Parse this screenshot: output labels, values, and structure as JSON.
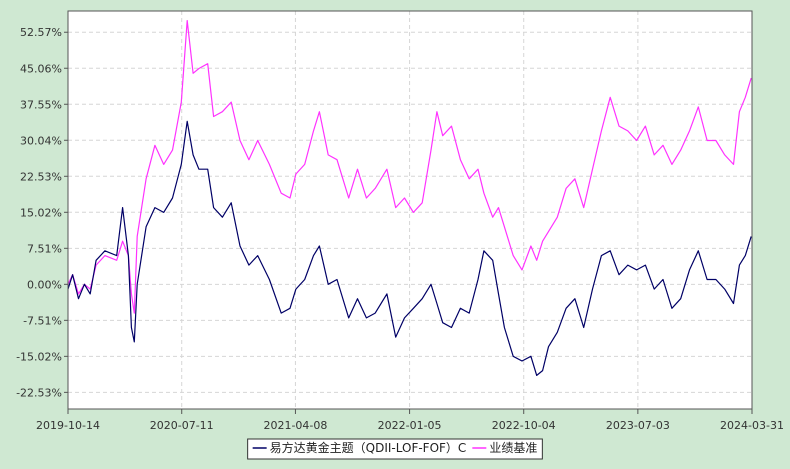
{
  "chart_data": {
    "type": "line",
    "ylim": [
      -26.0,
      57.0
    ],
    "y_ticks": [
      52.57,
      45.06,
      37.55,
      30.04,
      22.53,
      15.02,
      7.51,
      0.0,
      -7.51,
      -15.02,
      -22.53
    ],
    "y_tick_labels": [
      "52.57%",
      "45.06%",
      "37.55%",
      "30.04%",
      "22.53%",
      "15.02%",
      "7.51%",
      "0.00%",
      "-7.51%",
      "-15.02%",
      "-22.53%"
    ],
    "x_ticks": [
      "2019-10-14",
      "2020-07-11",
      "2021-04-08",
      "2022-01-05",
      "2022-10-04",
      "2023-07-03",
      "2024-03-31"
    ],
    "grid": true,
    "legend_position": "bottom-center",
    "series": [
      {
        "name": "易方达黄金主题（QDII-LOF-FOF）C",
        "color": "#000066",
        "points": [
          [
            "2019-10-14",
            -1.0
          ],
          [
            "2019-10-25",
            2.0
          ],
          [
            "2019-11-08",
            -3.0
          ],
          [
            "2019-11-22",
            0.0
          ],
          [
            "2019-12-06",
            -2.0
          ],
          [
            "2019-12-20",
            5.0
          ],
          [
            "2020-01-10",
            7.0
          ],
          [
            "2020-02-07",
            6.0
          ],
          [
            "2020-02-21",
            16.0
          ],
          [
            "2020-03-06",
            6.0
          ],
          [
            "2020-03-13",
            -9.0
          ],
          [
            "2020-03-20",
            -12.0
          ],
          [
            "2020-03-27",
            0.0
          ],
          [
            "2020-04-17",
            12.0
          ],
          [
            "2020-05-08",
            16.0
          ],
          [
            "2020-05-29",
            15.0
          ],
          [
            "2020-06-19",
            18.0
          ],
          [
            "2020-07-10",
            25.0
          ],
          [
            "2020-07-24",
            34.0
          ],
          [
            "2020-08-07",
            27.0
          ],
          [
            "2020-08-21",
            24.0
          ],
          [
            "2020-09-11",
            24.0
          ],
          [
            "2020-09-25",
            16.0
          ],
          [
            "2020-10-16",
            14.0
          ],
          [
            "2020-11-06",
            17.0
          ],
          [
            "2020-11-27",
            8.0
          ],
          [
            "2020-12-18",
            4.0
          ],
          [
            "2021-01-08",
            6.0
          ],
          [
            "2021-02-05",
            1.0
          ],
          [
            "2021-03-05",
            -6.0
          ],
          [
            "2021-03-26",
            -5.0
          ],
          [
            "2021-04-09",
            -1.0
          ],
          [
            "2021-04-30",
            1.0
          ],
          [
            "2021-05-21",
            6.0
          ],
          [
            "2021-06-04",
            8.0
          ],
          [
            "2021-06-25",
            0.0
          ],
          [
            "2021-07-16",
            1.0
          ],
          [
            "2021-08-13",
            -7.0
          ],
          [
            "2021-09-03",
            -3.0
          ],
          [
            "2021-09-24",
            -7.0
          ],
          [
            "2021-10-15",
            -6.0
          ],
          [
            "2021-11-12",
            -2.0
          ],
          [
            "2021-12-03",
            -11.0
          ],
          [
            "2021-12-24",
            -7.0
          ],
          [
            "2022-01-14",
            -5.0
          ],
          [
            "2022-02-04",
            -3.0
          ],
          [
            "2022-02-25",
            0.0
          ],
          [
            "2022-03-11",
            -4.0
          ],
          [
            "2022-03-25",
            -8.0
          ],
          [
            "2022-04-15",
            -9.0
          ],
          [
            "2022-05-06",
            -5.0
          ],
          [
            "2022-05-27",
            -6.0
          ],
          [
            "2022-06-17",
            1.0
          ],
          [
            "2022-07-01",
            7.0
          ],
          [
            "2022-07-22",
            5.0
          ],
          [
            "2022-08-05",
            -2.0
          ],
          [
            "2022-08-19",
            -9.0
          ],
          [
            "2022-09-09",
            -15.0
          ],
          [
            "2022-09-30",
            -16.0
          ],
          [
            "2022-10-21",
            -15.0
          ],
          [
            "2022-11-04",
            -19.0
          ],
          [
            "2022-11-18",
            -18.0
          ],
          [
            "2022-12-02",
            -13.0
          ],
          [
            "2022-12-23",
            -10.0
          ],
          [
            "2023-01-13",
            -5.0
          ],
          [
            "2023-02-03",
            -3.0
          ],
          [
            "2023-02-24",
            -9.0
          ],
          [
            "2023-03-17",
            -1.0
          ],
          [
            "2023-04-07",
            6.0
          ],
          [
            "2023-04-28",
            7.0
          ],
          [
            "2023-05-19",
            2.0
          ],
          [
            "2023-06-09",
            4.0
          ],
          [
            "2023-06-30",
            3.0
          ],
          [
            "2023-07-21",
            4.0
          ],
          [
            "2023-08-11",
            -1.0
          ],
          [
            "2023-09-01",
            1.0
          ],
          [
            "2023-09-22",
            -5.0
          ],
          [
            "2023-10-13",
            -3.0
          ],
          [
            "2023-11-03",
            3.0
          ],
          [
            "2023-11-24",
            7.0
          ],
          [
            "2023-12-15",
            1.0
          ],
          [
            "2024-01-05",
            1.0
          ],
          [
            "2024-01-26",
            -1.0
          ],
          [
            "2024-02-16",
            -4.0
          ],
          [
            "2024-03-01",
            4.0
          ],
          [
            "2024-03-15",
            6.0
          ],
          [
            "2024-03-29",
            10.0
          ]
        ]
      },
      {
        "name": "业绩基准",
        "color": "#ff33ff",
        "points": [
          [
            "2019-10-14",
            0.0
          ],
          [
            "2019-10-25",
            2.0
          ],
          [
            "2019-11-08",
            -2.0
          ],
          [
            "2019-11-22",
            0.0
          ],
          [
            "2019-12-06",
            -1.0
          ],
          [
            "2019-12-20",
            4.0
          ],
          [
            "2020-01-10",
            6.0
          ],
          [
            "2020-02-07",
            5.0
          ],
          [
            "2020-02-21",
            9.0
          ],
          [
            "2020-03-06",
            6.0
          ],
          [
            "2020-03-13",
            -2.0
          ],
          [
            "2020-03-20",
            -6.0
          ],
          [
            "2020-03-27",
            10.0
          ],
          [
            "2020-04-17",
            22.0
          ],
          [
            "2020-05-08",
            29.0
          ],
          [
            "2020-05-29",
            25.0
          ],
          [
            "2020-06-19",
            28.0
          ],
          [
            "2020-07-10",
            38.0
          ],
          [
            "2020-07-24",
            55.0
          ],
          [
            "2020-08-07",
            44.0
          ],
          [
            "2020-08-21",
            45.0
          ],
          [
            "2020-09-11",
            46.0
          ],
          [
            "2020-09-25",
            35.0
          ],
          [
            "2020-10-16",
            36.0
          ],
          [
            "2020-11-06",
            38.0
          ],
          [
            "2020-11-27",
            30.0
          ],
          [
            "2020-12-18",
            26.0
          ],
          [
            "2021-01-08",
            30.0
          ],
          [
            "2021-02-05",
            25.0
          ],
          [
            "2021-03-05",
            19.0
          ],
          [
            "2021-03-26",
            18.0
          ],
          [
            "2021-04-09",
            23.0
          ],
          [
            "2021-04-30",
            25.0
          ],
          [
            "2021-05-21",
            32.0
          ],
          [
            "2021-06-04",
            36.0
          ],
          [
            "2021-06-25",
            27.0
          ],
          [
            "2021-07-16",
            26.0
          ],
          [
            "2021-08-13",
            18.0
          ],
          [
            "2021-09-03",
            24.0
          ],
          [
            "2021-09-24",
            18.0
          ],
          [
            "2021-10-15",
            20.0
          ],
          [
            "2021-11-12",
            24.0
          ],
          [
            "2021-12-03",
            16.0
          ],
          [
            "2021-12-24",
            18.0
          ],
          [
            "2022-01-14",
            15.0
          ],
          [
            "2022-02-04",
            17.0
          ],
          [
            "2022-02-25",
            28.0
          ],
          [
            "2022-03-11",
            36.0
          ],
          [
            "2022-03-25",
            31.0
          ],
          [
            "2022-04-15",
            33.0
          ],
          [
            "2022-05-06",
            26.0
          ],
          [
            "2022-05-27",
            22.0
          ],
          [
            "2022-06-17",
            24.0
          ],
          [
            "2022-07-01",
            19.0
          ],
          [
            "2022-07-22",
            14.0
          ],
          [
            "2022-08-05",
            16.0
          ],
          [
            "2022-08-19",
            12.0
          ],
          [
            "2022-09-09",
            6.0
          ],
          [
            "2022-09-30",
            3.0
          ],
          [
            "2022-10-21",
            8.0
          ],
          [
            "2022-11-04",
            5.0
          ],
          [
            "2022-11-18",
            9.0
          ],
          [
            "2022-12-02",
            11.0
          ],
          [
            "2022-12-23",
            14.0
          ],
          [
            "2023-01-13",
            20.0
          ],
          [
            "2023-02-03",
            22.0
          ],
          [
            "2023-02-24",
            16.0
          ],
          [
            "2023-03-17",
            24.0
          ],
          [
            "2023-04-07",
            32.0
          ],
          [
            "2023-04-28",
            39.0
          ],
          [
            "2023-05-19",
            33.0
          ],
          [
            "2023-06-09",
            32.0
          ],
          [
            "2023-06-30",
            30.0
          ],
          [
            "2023-07-21",
            33.0
          ],
          [
            "2023-08-11",
            27.0
          ],
          [
            "2023-09-01",
            29.0
          ],
          [
            "2023-09-22",
            25.0
          ],
          [
            "2023-10-13",
            28.0
          ],
          [
            "2023-11-03",
            32.0
          ],
          [
            "2023-11-24",
            37.0
          ],
          [
            "2023-12-15",
            30.0
          ],
          [
            "2024-01-05",
            30.0
          ],
          [
            "2024-01-26",
            27.0
          ],
          [
            "2024-02-16",
            25.0
          ],
          [
            "2024-03-01",
            36.0
          ],
          [
            "2024-03-15",
            39.0
          ],
          [
            "2024-03-29",
            43.0
          ]
        ]
      }
    ]
  }
}
